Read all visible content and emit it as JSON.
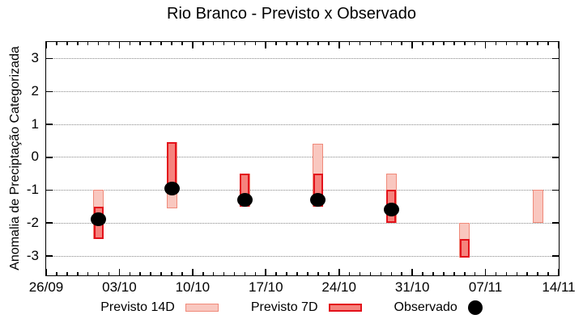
{
  "title": "Rio Branco - Previsto x Observado",
  "axes": {
    "ylabel": "Anomalia de Preciptação Categorizada",
    "ytick_labels": [
      "3",
      "2",
      "1",
      "0",
      "-1",
      "-2",
      "-3"
    ],
    "xtick_labels": [
      "26/09",
      "03/10",
      "10/10",
      "17/10",
      "24/10",
      "31/10",
      "07/11",
      "14/11"
    ]
  },
  "legend": {
    "items": [
      {
        "label": "Previsto 14D",
        "swatch": "light-red-box"
      },
      {
        "label": "Previsto 7D",
        "swatch": "red-box"
      },
      {
        "label": "Observado",
        "swatch": "black-dot"
      }
    ]
  },
  "colors": {
    "forecast14_fill": "#f9c7bf",
    "forecast14_border": "#f08a7a",
    "forecast7_fill": "#f5837d",
    "forecast7_border": "#e3121b",
    "observed": "#000000",
    "grid": "#888888",
    "axis": "#000000"
  },
  "chart_data": {
    "type": "bar",
    "title": "Rio Branco - Previsto x Observado",
    "xlabel": "",
    "ylabel": "Anomalia de Preciptação Categorizada",
    "ylim": [
      -3.6,
      3.5
    ],
    "grid": "horizontal dotted lines at integer y values, mirrored inward ticks on all borders, minor x ticks daily",
    "legend_position": "below plot, horizontal",
    "yticks": [
      3,
      2,
      1,
      0,
      -1,
      -2,
      -3
    ],
    "x_span_days": 49,
    "xticks": [
      {
        "day": 0,
        "label": "26/09"
      },
      {
        "day": 7,
        "label": "03/10"
      },
      {
        "day": 14,
        "label": "10/10"
      },
      {
        "day": 21,
        "label": "17/10"
      },
      {
        "day": 28,
        "label": "24/10"
      },
      {
        "day": 35,
        "label": "31/10"
      },
      {
        "day": 42,
        "label": "07/11"
      },
      {
        "day": 49,
        "label": "14/11"
      }
    ],
    "series": [
      {
        "name": "Previsto 14D",
        "type": "range_bar",
        "fill": "#f9c7bf",
        "border": "#f08a7a",
        "points": [
          {
            "date": "01/10",
            "day": 5,
            "high": -1.0,
            "low": -2.5
          },
          {
            "date": "08/10",
            "day": 12,
            "high": 0.45,
            "low": -1.55
          },
          {
            "date": "15/10",
            "day": 19,
            "high": -0.5,
            "low": -1.5
          },
          {
            "date": "22/10",
            "day": 26,
            "high": 0.4,
            "low": -1.5
          },
          {
            "date": "29/10",
            "day": 33,
            "high": -0.5,
            "low": -2.0
          },
          {
            "date": "05/11",
            "day": 40,
            "high": -2.0,
            "low": -3.05
          },
          {
            "date": "12/11",
            "day": 47,
            "high": -1.0,
            "low": -2.0
          }
        ]
      },
      {
        "name": "Previsto 7D",
        "type": "range_bar",
        "fill": "#f5837d",
        "border": "#e3121b",
        "points": [
          {
            "date": "01/10",
            "day": 5,
            "high": -1.5,
            "low": -2.5
          },
          {
            "date": "08/10",
            "day": 12,
            "high": 0.45,
            "low": -1.05
          },
          {
            "date": "15/10",
            "day": 19,
            "high": -0.5,
            "low": -1.5
          },
          {
            "date": "22/10",
            "day": 26,
            "high": -0.5,
            "low": -1.5
          },
          {
            "date": "29/10",
            "day": 33,
            "high": -1.0,
            "low": -2.0
          },
          {
            "date": "05/11",
            "day": 40,
            "high": -2.5,
            "low": -3.05
          }
        ]
      },
      {
        "name": "Observado",
        "type": "scatter",
        "color": "#000000",
        "points": [
          {
            "date": "01/10",
            "day": 5,
            "value": -1.9
          },
          {
            "date": "08/10",
            "day": 12,
            "value": -0.95
          },
          {
            "date": "15/10",
            "day": 19,
            "value": -1.3
          },
          {
            "date": "22/10",
            "day": 26,
            "value": -1.3
          },
          {
            "date": "29/10",
            "day": 33,
            "value": -1.6
          }
        ]
      }
    ]
  }
}
